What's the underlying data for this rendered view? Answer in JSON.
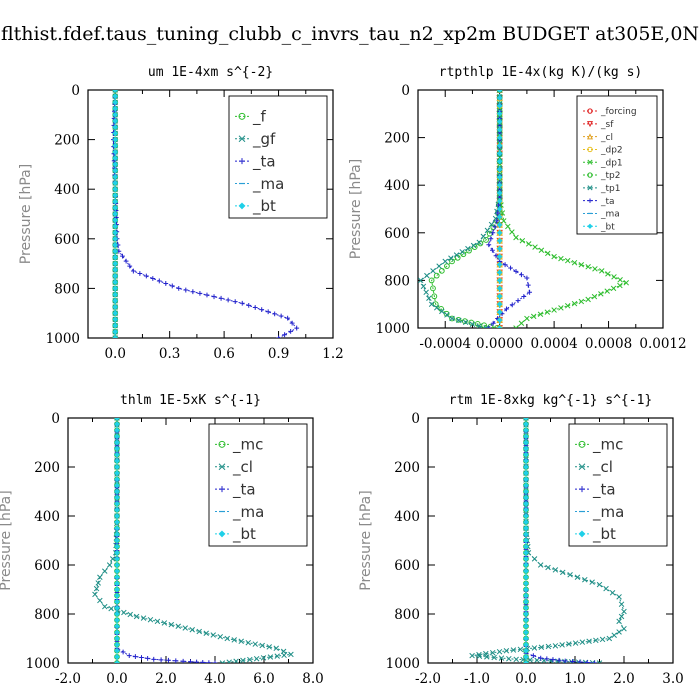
{
  "suptitle": "flthist.fdef.taus_tuning_clubb_c_invrs_tau_n2_xp2m  BUDGET at305E,0N",
  "chart_data": [
    {
      "type": "line",
      "title": "um  1E-4xm s^{-2}",
      "ylabel": "Pressure [hPa]",
      "xlim": [
        -0.15,
        1.2
      ],
      "ylim": [
        1000,
        0
      ],
      "xticks": [
        "0.0",
        "0.3",
        "0.6",
        "0.9",
        "1.2"
      ],
      "xtick_values": [
        0,
        0.3,
        0.6,
        0.9,
        1.2
      ],
      "yticks": [
        "0",
        "200",
        "400",
        "600",
        "800",
        "1000"
      ],
      "ytick_values": [
        0,
        200,
        400,
        600,
        800,
        1000
      ],
      "legend_position": "top-right",
      "legend_font": 15,
      "series": [
        {
          "name": "_f",
          "color": "#2ebd2e",
          "marker": "circle",
          "x": [
            0,
            0,
            0,
            0,
            0,
            0,
            0,
            0,
            0,
            0,
            0
          ],
          "y": [
            0,
            100,
            200,
            300,
            400,
            500,
            600,
            700,
            800,
            900,
            1000
          ]
        },
        {
          "name": "_gf",
          "color": "#1e8e86",
          "marker": "x",
          "x": [
            0,
            0,
            0,
            0,
            0,
            0,
            0,
            0,
            0,
            0,
            0
          ],
          "y": [
            0,
            100,
            200,
            300,
            400,
            500,
            600,
            700,
            800,
            900,
            1000
          ]
        },
        {
          "name": "_ta",
          "color": "#2222cc",
          "marker": "plus",
          "x": [
            0,
            -0.01,
            0,
            0.01,
            0.02,
            0.1,
            0.35,
            0.7,
            0.95,
            1.0,
            0.9
          ],
          "y": [
            0,
            200,
            400,
            600,
            650,
            730,
            800,
            860,
            920,
            960,
            1000
          ]
        },
        {
          "name": "_ma",
          "color": "#2a9fd6",
          "marker": "dash",
          "x": [
            0,
            0,
            0,
            0,
            0,
            0,
            0,
            0,
            0,
            0,
            0
          ],
          "y": [
            0,
            100,
            200,
            300,
            400,
            500,
            600,
            700,
            800,
            900,
            1000
          ]
        },
        {
          "name": "_bt",
          "color": "#1fd0e8",
          "marker": "diamond",
          "x": [
            0,
            0,
            0,
            0,
            0,
            0,
            0,
            0,
            0,
            0,
            0
          ],
          "y": [
            0,
            100,
            200,
            300,
            400,
            500,
            600,
            700,
            800,
            900,
            1000
          ]
        }
      ]
    },
    {
      "type": "line",
      "title": "rtpthlp  1E-4x(kg K)/(kg s)",
      "ylabel": "Pressure [hPa]",
      "xlim": [
        -0.0006,
        0.0012
      ],
      "ylim": [
        1000,
        0
      ],
      "xticks": [
        "-0.0004",
        "0.0000",
        "0.0004",
        "0.0008",
        "0.0012"
      ],
      "xtick_values": [
        -0.0004,
        0,
        0.0004,
        0.0008,
        0.0012
      ],
      "yticks": [
        "0",
        "200",
        "400",
        "600",
        "800",
        "1000"
      ],
      "ytick_values": [
        0,
        200,
        400,
        600,
        800,
        1000
      ],
      "legend_position": "top-right",
      "legend_font": 9,
      "series": [
        {
          "name": "_forcing",
          "color": "#e02020",
          "marker": "circle",
          "x": [
            0,
            0,
            0,
            0,
            0,
            0,
            0,
            0,
            0,
            0,
            0
          ],
          "y": [
            0,
            100,
            200,
            300,
            400,
            500,
            600,
            700,
            800,
            900,
            1000
          ]
        },
        {
          "name": "_sf",
          "color": "#e02020",
          "marker": "tri-down",
          "x": [
            0,
            0,
            0,
            0,
            0,
            0,
            0,
            0,
            0,
            0,
            0
          ],
          "y": [
            0,
            100,
            200,
            300,
            400,
            500,
            600,
            700,
            800,
            900,
            1000
          ]
        },
        {
          "name": "_cl",
          "color": "#e0a020",
          "marker": "tri-up",
          "x": [
            0,
            0,
            0,
            0,
            0,
            0,
            0,
            0,
            0,
            0,
            0
          ],
          "y": [
            0,
            100,
            200,
            300,
            400,
            500,
            600,
            700,
            800,
            900,
            1000
          ]
        },
        {
          "name": "_dp2",
          "color": "#e8c020",
          "marker": "circle",
          "x": [
            0,
            0,
            0,
            0,
            0,
            0,
            0,
            0,
            0,
            0,
            0
          ],
          "y": [
            0,
            100,
            200,
            300,
            400,
            500,
            600,
            700,
            800,
            900,
            1000
          ]
        },
        {
          "name": "_dp1",
          "color": "#2ebd2e",
          "marker": "x",
          "x": [
            0,
            0,
            0,
            3e-05,
            0.00012,
            0.0004,
            0.00075,
            0.00093,
            0.00065,
            0.0002,
            0.00012
          ],
          "y": [
            0,
            200,
            450,
            550,
            620,
            700,
            760,
            810,
            880,
            960,
            1000
          ]
        },
        {
          "name": "_tp2",
          "color": "#2ebd2e",
          "marker": "circle",
          "x": [
            0,
            0,
            -2e-05,
            -0.0001,
            -0.00035,
            -0.0005,
            -0.00047,
            -0.00035,
            -2e-05
          ],
          "y": [
            0,
            450,
            550,
            630,
            720,
            800,
            900,
            960,
            1000
          ]
        },
        {
          "name": "_tp1",
          "color": "#1e8e86",
          "marker": "x",
          "x": [
            0,
            0,
            -3e-05,
            -0.00015,
            -0.0004,
            -0.00058,
            -0.0005,
            -0.00035,
            -0.0001
          ],
          "y": [
            0,
            450,
            540,
            640,
            720,
            800,
            900,
            960,
            1000
          ]
        },
        {
          "name": "_ta",
          "color": "#2222cc",
          "marker": "plus",
          "x": [
            0,
            0,
            -2e-05,
            -8e-05,
            0,
            0.0002,
            0.00022,
            5e-05,
            -8e-05
          ],
          "y": [
            0,
            450,
            550,
            650,
            720,
            790,
            850,
            920,
            1000
          ]
        },
        {
          "name": "_ma",
          "color": "#2a9fd6",
          "marker": "dash",
          "x": [
            0,
            0,
            0,
            0,
            0,
            0,
            0,
            0,
            0,
            0,
            0
          ],
          "y": [
            0,
            100,
            200,
            300,
            400,
            500,
            600,
            700,
            800,
            900,
            1000
          ]
        },
        {
          "name": "_bt",
          "color": "#1fd0e8",
          "marker": "diamond",
          "x": [
            0,
            0,
            0,
            0,
            0,
            0,
            0,
            0,
            0,
            0,
            0
          ],
          "y": [
            0,
            100,
            200,
            300,
            400,
            500,
            600,
            700,
            800,
            900,
            1000
          ]
        }
      ]
    },
    {
      "type": "line",
      "title": "thlm  1E-5xK s^{-1}",
      "ylabel": "Pressure [hPa]",
      "xlim": [
        -2.0,
        8.0
      ],
      "ylim": [
        1000,
        0
      ],
      "xticks": [
        "-2.0",
        "0.0",
        "2.0",
        "4.0",
        "6.0",
        "8.0"
      ],
      "xtick_values": [
        -2,
        0,
        2,
        4,
        6,
        8
      ],
      "yticks": [
        "0",
        "200",
        "400",
        "600",
        "800",
        "1000"
      ],
      "ytick_values": [
        0,
        200,
        400,
        600,
        800,
        1000
      ],
      "legend_position": "top-right",
      "legend_font": 15,
      "series": [
        {
          "name": "_mc",
          "color": "#2ebd2e",
          "marker": "circle",
          "x": [
            0,
            0,
            0,
            0,
            0,
            0,
            0,
            0,
            0,
            0,
            0
          ],
          "y": [
            0,
            100,
            200,
            300,
            400,
            500,
            600,
            700,
            800,
            900,
            1000
          ]
        },
        {
          "name": "_cl",
          "color": "#1e8e86",
          "marker": "x",
          "x": [
            0,
            0,
            -0.05,
            -0.3,
            -0.7,
            -0.9,
            -0.5,
            0.8,
            2.5,
            4.5,
            6.5,
            7.1,
            4.3
          ],
          "y": [
            0,
            400,
            550,
            600,
            650,
            720,
            770,
            810,
            850,
            900,
            940,
            965,
            1000
          ]
        },
        {
          "name": "_ta",
          "color": "#2222cc",
          "marker": "plus",
          "x": [
            0,
            0,
            0.5,
            1.5,
            3.0,
            4.0
          ],
          "y": [
            0,
            940,
            970,
            985,
            995,
            1000
          ]
        },
        {
          "name": "_ma",
          "color": "#2a9fd6",
          "marker": "dash",
          "x": [
            0,
            0,
            0,
            0,
            0,
            0,
            0,
            0,
            0,
            0,
            0
          ],
          "y": [
            0,
            100,
            200,
            300,
            400,
            500,
            600,
            700,
            800,
            900,
            1000
          ]
        },
        {
          "name": "_bt",
          "color": "#1fd0e8",
          "marker": "diamond",
          "x": [
            0,
            0,
            0,
            0,
            0,
            0,
            0,
            0,
            0,
            0,
            0
          ],
          "y": [
            0,
            100,
            200,
            300,
            400,
            500,
            600,
            700,
            800,
            900,
            1000
          ]
        }
      ]
    },
    {
      "type": "line",
      "title": "rtm  1E-8xkg kg^{-1} s^{-1}",
      "ylabel": "Pressure [hPa]",
      "xlim": [
        -2.0,
        3.0
      ],
      "ylim": [
        1000,
        0
      ],
      "xticks": [
        "-2.0",
        "-1.0",
        "0.0",
        "1.0",
        "2.0",
        "3.0"
      ],
      "xtick_values": [
        -2,
        -1,
        0,
        1,
        2,
        3
      ],
      "yticks": [
        "0",
        "200",
        "400",
        "600",
        "800",
        "1000"
      ],
      "ytick_values": [
        0,
        200,
        400,
        600,
        800,
        1000
      ],
      "legend_position": "top-right",
      "legend_font": 15,
      "series": [
        {
          "name": "_mc",
          "color": "#2ebd2e",
          "marker": "circle",
          "x": [
            0,
            0,
            0,
            0,
            0,
            0,
            0,
            0,
            0,
            0,
            0
          ],
          "y": [
            0,
            100,
            200,
            300,
            400,
            500,
            600,
            700,
            800,
            900,
            1000
          ]
        },
        {
          "name": "_cl",
          "color": "#1e8e86",
          "marker": "x",
          "x": [
            0,
            0,
            0.05,
            0.3,
            0.9,
            1.5,
            1.9,
            2.0,
            1.9,
            2.0,
            1.7,
            0.6,
            -0.4,
            -1.1,
            -0.2,
            1.5
          ],
          "y": [
            0,
            450,
            550,
            600,
            640,
            680,
            730,
            790,
            830,
            860,
            900,
            930,
            950,
            970,
            985,
            1000
          ]
        },
        {
          "name": "_ta",
          "color": "#2222cc",
          "marker": "plus",
          "x": [
            0,
            0,
            0.3,
            0.8,
            1.4
          ],
          "y": [
            0,
            960,
            980,
            992,
            1000
          ]
        },
        {
          "name": "_ma",
          "color": "#2a9fd6",
          "marker": "dash",
          "x": [
            0,
            0,
            0,
            0,
            0,
            0,
            0,
            0,
            0,
            0,
            0
          ],
          "y": [
            0,
            100,
            200,
            300,
            400,
            500,
            600,
            700,
            800,
            900,
            1000
          ]
        },
        {
          "name": "_bt",
          "color": "#1fd0e8",
          "marker": "diamond",
          "x": [
            0,
            0,
            0,
            0,
            0,
            0,
            0,
            0,
            0,
            0,
            0
          ],
          "y": [
            0,
            100,
            200,
            300,
            400,
            500,
            600,
            700,
            800,
            900,
            1000
          ]
        }
      ]
    }
  ]
}
